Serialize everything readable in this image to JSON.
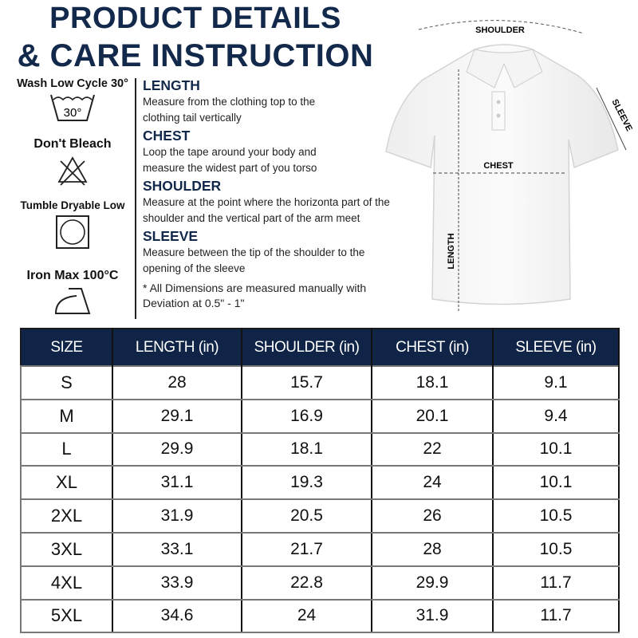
{
  "header": {
    "title_line1": "PRODUCT DETAILS",
    "title_line2": "& CARE INSTRUCTION"
  },
  "care": [
    {
      "label": "Wash Low Cycle 30°",
      "icon": "wash-30-icon",
      "icon_text": "30°"
    },
    {
      "label": "Don't Bleach",
      "icon": "no-bleach-icon"
    },
    {
      "label": "Tumble Dryable Low",
      "icon": "tumble-dry-low-icon"
    },
    {
      "label": "Iron Max 100°C",
      "icon": "iron-icon"
    }
  ],
  "measurements": [
    {
      "heading": "LENGTH",
      "text": "Measure from the clothing top to the clothing tail vertically"
    },
    {
      "heading": "CHEST",
      "text": "Loop the tape around your body and measure the widest part of you torso"
    },
    {
      "heading": "SHOULDER",
      "text": "Measure at the point where the horizonta part of the shoulder and the vertical part of the arm meet"
    },
    {
      "heading": "SLEEVE",
      "text": "Measure between the tip of the shoulder to the opening of the sleeve"
    }
  ],
  "note": "* All Dimensions are measured manually with Deviation at 0.5\" - 1\"",
  "diagram": {
    "shoulder": "SHOULDER",
    "chest": "CHEST",
    "length": "LENGTH",
    "sleeve": "SLEEVE"
  },
  "colors": {
    "navy": "#0f2446"
  },
  "table": {
    "headers": [
      "SIZE",
      "LENGTH (in)",
      "SHOULDER (in)",
      "CHEST (in)",
      "SLEEVE (in)"
    ],
    "rows": [
      [
        "S",
        "28",
        "15.7",
        "18.1",
        "9.1"
      ],
      [
        "M",
        "29.1",
        "16.9",
        "20.1",
        "9.4"
      ],
      [
        "L",
        "29.9",
        "18.1",
        "22",
        "10.1"
      ],
      [
        "XL",
        "31.1",
        "19.3",
        "24",
        "10.1"
      ],
      [
        "2XL",
        "31.9",
        "20.5",
        "26",
        "10.5"
      ],
      [
        "3XL",
        "33.1",
        "21.7",
        "28",
        "10.5"
      ],
      [
        "4XL",
        "33.9",
        "22.8",
        "29.9",
        "11.7"
      ],
      [
        "5XL",
        "34.6",
        "24",
        "31.9",
        "11.7"
      ]
    ]
  }
}
